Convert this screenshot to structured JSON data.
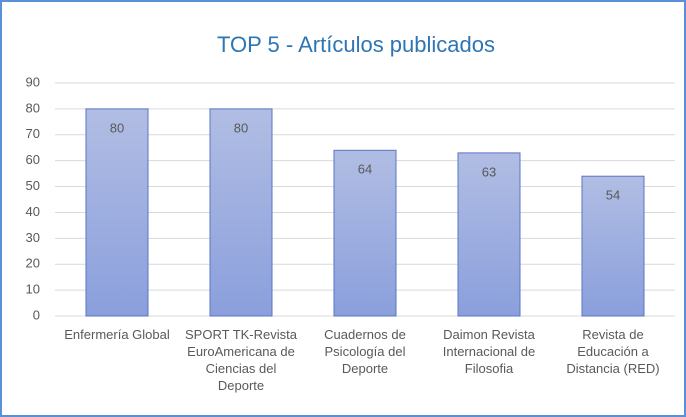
{
  "chart_data": {
    "type": "bar",
    "title": "TOP 5 - Artículos publicados",
    "categories": [
      "Enfermería Global",
      "SPORT TK-Revista EuroAmericana de Ciencias del Deporte",
      "Cuadernos de Psicología del Deporte",
      "Daimon Revista Internacional de Filosofia",
      "Revista de Educación a Distancia (RED)"
    ],
    "values": [
      80,
      80,
      64,
      63,
      54
    ],
    "color": "#9aabdf",
    "ylim": [
      0,
      90
    ],
    "yticks": [
      0,
      10,
      20,
      30,
      40,
      50,
      60,
      70,
      80,
      90
    ],
    "grid": true
  }
}
